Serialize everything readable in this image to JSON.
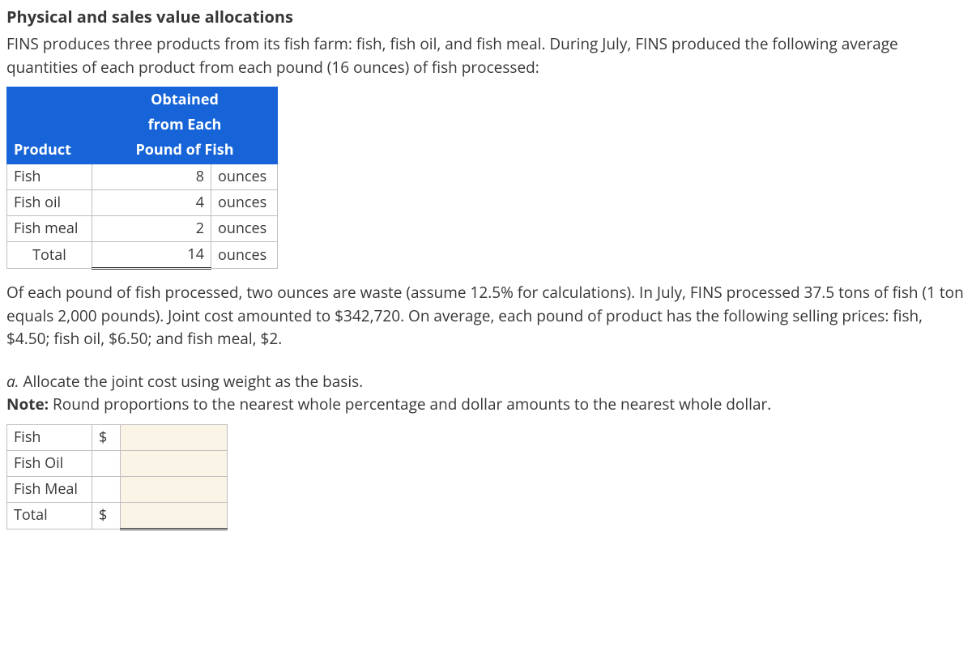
{
  "title": "Physical and sales value allocations",
  "intro": "FINS produces three products from its fish farm: fish, fish oil, and fish meal. During July, FINS produced the following average quantities of each product from each pound (16 ounces) of fish processed:",
  "table1": {
    "header_col1": "Product",
    "header_col2_line1": "Obtained",
    "header_col2_line2": "from Each",
    "header_col2_line3": "Pound of Fish",
    "rows": [
      {
        "product": "Fish",
        "qty": "8",
        "unit": "ounces"
      },
      {
        "product": "Fish oil",
        "qty": "4",
        "unit": "ounces"
      },
      {
        "product": "Fish meal",
        "qty": "2",
        "unit": "ounces"
      }
    ],
    "total_label": "Total",
    "total_qty": "14",
    "total_unit": "ounces"
  },
  "para2": "Of each pound of fish processed, two ounces are waste (assume 12.5% for calculations). In July, FINS processed 37.5 tons of fish (1 ton equals 2,000 pounds). Joint cost amounted to $342,720. On average, each pound of product has the following selling prices: fish, $4.50; fish oil, $6.50; and fish meal, $2.",
  "question": {
    "letter": "a.",
    "text": " Allocate the joint cost using weight as the basis.",
    "note_label": "Note:",
    "note_text": " Round proportions to the nearest whole percentage and dollar amounts to the nearest whole dollar."
  },
  "answer_table": {
    "rows": [
      {
        "label": "Fish",
        "dollar": "$",
        "value": ""
      },
      {
        "label": "Fish Oil",
        "dollar": "",
        "value": ""
      },
      {
        "label": "Fish Meal",
        "dollar": "",
        "value": ""
      }
    ],
    "total_label": "Total",
    "total_dollar": "$",
    "total_value": ""
  }
}
